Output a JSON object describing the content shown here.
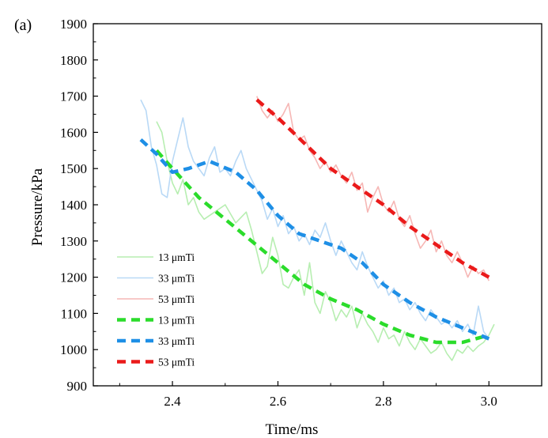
{
  "chart_data": {
    "type": "line",
    "panel_label": "(a)",
    "xlabel": "Time/ms",
    "ylabel": "Pressure/kPa",
    "xlim": [
      2.25,
      3.1
    ],
    "ylim": [
      900,
      1900
    ],
    "x_ticks": [
      2.4,
      2.6,
      2.8,
      3.0
    ],
    "x_tick_labels": [
      "2.4",
      "2.6",
      "2.8",
      "3.0"
    ],
    "y_ticks": [
      900,
      1000,
      1100,
      1200,
      1300,
      1400,
      1500,
      1600,
      1700,
      1800,
      1900
    ],
    "y_tick_labels": [
      "900",
      "1000",
      "1100",
      "1200",
      "1300",
      "1400",
      "1500",
      "1600",
      "1700",
      "1800",
      "1900"
    ],
    "grid": false,
    "legend_position": "bottom-left",
    "series": [
      {
        "name": "13 μmTi",
        "style": "thin",
        "color": "#b7eeb1",
        "points": [
          [
            2.37,
            1630
          ],
          [
            2.38,
            1600
          ],
          [
            2.39,
            1520
          ],
          [
            2.4,
            1460
          ],
          [
            2.41,
            1430
          ],
          [
            2.42,
            1470
          ],
          [
            2.43,
            1400
          ],
          [
            2.44,
            1420
          ],
          [
            2.45,
            1380
          ],
          [
            2.46,
            1360
          ],
          [
            2.48,
            1380
          ],
          [
            2.5,
            1400
          ],
          [
            2.52,
            1350
          ],
          [
            2.54,
            1380
          ],
          [
            2.55,
            1330
          ],
          [
            2.56,
            1270
          ],
          [
            2.57,
            1210
          ],
          [
            2.58,
            1230
          ],
          [
            2.59,
            1310
          ],
          [
            2.6,
            1260
          ],
          [
            2.61,
            1180
          ],
          [
            2.62,
            1170
          ],
          [
            2.63,
            1200
          ],
          [
            2.64,
            1220
          ],
          [
            2.65,
            1150
          ],
          [
            2.66,
            1240
          ],
          [
            2.67,
            1130
          ],
          [
            2.68,
            1100
          ],
          [
            2.69,
            1160
          ],
          [
            2.7,
            1130
          ],
          [
            2.71,
            1080
          ],
          [
            2.72,
            1110
          ],
          [
            2.73,
            1090
          ],
          [
            2.74,
            1120
          ],
          [
            2.75,
            1060
          ],
          [
            2.76,
            1100
          ],
          [
            2.77,
            1070
          ],
          [
            2.78,
            1050
          ],
          [
            2.79,
            1020
          ],
          [
            2.8,
            1060
          ],
          [
            2.81,
            1030
          ],
          [
            2.82,
            1040
          ],
          [
            2.83,
            1010
          ],
          [
            2.84,
            1050
          ],
          [
            2.85,
            1020
          ],
          [
            2.86,
            1000
          ],
          [
            2.87,
            1030
          ],
          [
            2.88,
            1010
          ],
          [
            2.89,
            990
          ],
          [
            2.9,
            1000
          ],
          [
            2.91,
            1020
          ],
          [
            2.92,
            990
          ],
          [
            2.93,
            970
          ],
          [
            2.94,
            1000
          ],
          [
            2.95,
            990
          ],
          [
            2.96,
            1010
          ],
          [
            2.97,
            995
          ],
          [
            2.98,
            1010
          ],
          [
            2.99,
            1020
          ],
          [
            3.0,
            1040
          ],
          [
            3.01,
            1070
          ]
        ]
      },
      {
        "name": "33 μmTi",
        "style": "thin",
        "color": "#b9d9f6",
        "points": [
          [
            2.34,
            1690
          ],
          [
            2.35,
            1660
          ],
          [
            2.36,
            1560
          ],
          [
            2.37,
            1510
          ],
          [
            2.38,
            1430
          ],
          [
            2.39,
            1420
          ],
          [
            2.4,
            1520
          ],
          [
            2.41,
            1580
          ],
          [
            2.42,
            1640
          ],
          [
            2.43,
            1560
          ],
          [
            2.44,
            1520
          ],
          [
            2.45,
            1500
          ],
          [
            2.46,
            1480
          ],
          [
            2.47,
            1530
          ],
          [
            2.48,
            1560
          ],
          [
            2.49,
            1490
          ],
          [
            2.5,
            1500
          ],
          [
            2.51,
            1480
          ],
          [
            2.52,
            1520
          ],
          [
            2.53,
            1550
          ],
          [
            2.54,
            1500
          ],
          [
            2.55,
            1470
          ],
          [
            2.56,
            1440
          ],
          [
            2.57,
            1410
          ],
          [
            2.58,
            1360
          ],
          [
            2.59,
            1390
          ],
          [
            2.6,
            1340
          ],
          [
            2.61,
            1370
          ],
          [
            2.62,
            1320
          ],
          [
            2.63,
            1340
          ],
          [
            2.64,
            1300
          ],
          [
            2.65,
            1320
          ],
          [
            2.66,
            1290
          ],
          [
            2.67,
            1330
          ],
          [
            2.68,
            1310
          ],
          [
            2.69,
            1350
          ],
          [
            2.7,
            1300
          ],
          [
            2.71,
            1260
          ],
          [
            2.72,
            1300
          ],
          [
            2.73,
            1270
          ],
          [
            2.74,
            1240
          ],
          [
            2.75,
            1220
          ],
          [
            2.76,
            1270
          ],
          [
            2.77,
            1230
          ],
          [
            2.78,
            1200
          ],
          [
            2.79,
            1170
          ],
          [
            2.8,
            1190
          ],
          [
            2.81,
            1150
          ],
          [
            2.82,
            1170
          ],
          [
            2.83,
            1130
          ],
          [
            2.84,
            1140
          ],
          [
            2.85,
            1110
          ],
          [
            2.86,
            1130
          ],
          [
            2.87,
            1100
          ],
          [
            2.88,
            1080
          ],
          [
            2.89,
            1110
          ],
          [
            2.9,
            1090
          ],
          [
            2.91,
            1070
          ],
          [
            2.92,
            1080
          ],
          [
            2.93,
            1060
          ],
          [
            2.94,
            1080
          ],
          [
            2.95,
            1050
          ],
          [
            2.96,
            1070
          ],
          [
            2.97,
            1040
          ],
          [
            2.98,
            1120
          ],
          [
            2.99,
            1050
          ],
          [
            3.0,
            1030
          ]
        ]
      },
      {
        "name": "53 μmTi",
        "style": "thin",
        "color": "#f6b7b5",
        "points": [
          [
            2.56,
            1700
          ],
          [
            2.57,
            1660
          ],
          [
            2.58,
            1640
          ],
          [
            2.59,
            1660
          ],
          [
            2.6,
            1630
          ],
          [
            2.61,
            1650
          ],
          [
            2.62,
            1680
          ],
          [
            2.63,
            1600
          ],
          [
            2.64,
            1580
          ],
          [
            2.65,
            1590
          ],
          [
            2.66,
            1550
          ],
          [
            2.67,
            1530
          ],
          [
            2.68,
            1500
          ],
          [
            2.69,
            1520
          ],
          [
            2.7,
            1490
          ],
          [
            2.71,
            1510
          ],
          [
            2.72,
            1480
          ],
          [
            2.73,
            1460
          ],
          [
            2.74,
            1490
          ],
          [
            2.75,
            1440
          ],
          [
            2.76,
            1460
          ],
          [
            2.77,
            1380
          ],
          [
            2.78,
            1420
          ],
          [
            2.79,
            1450
          ],
          [
            2.8,
            1400
          ],
          [
            2.81,
            1380
          ],
          [
            2.82,
            1410
          ],
          [
            2.83,
            1360
          ],
          [
            2.84,
            1340
          ],
          [
            2.85,
            1370
          ],
          [
            2.86,
            1320
          ],
          [
            2.87,
            1280
          ],
          [
            2.88,
            1300
          ],
          [
            2.89,
            1330
          ],
          [
            2.9,
            1270
          ],
          [
            2.91,
            1300
          ],
          [
            2.92,
            1260
          ],
          [
            2.93,
            1240
          ],
          [
            2.94,
            1270
          ],
          [
            2.95,
            1240
          ],
          [
            2.96,
            1200
          ],
          [
            2.97,
            1230
          ],
          [
            2.98,
            1210
          ],
          [
            2.99,
            1220
          ],
          [
            3.0,
            1190
          ]
        ]
      },
      {
        "name": "13 μmTi",
        "style": "dashed",
        "color": "#2bdc2b",
        "points": [
          [
            2.37,
            1550
          ],
          [
            2.4,
            1500
          ],
          [
            2.45,
            1420
          ],
          [
            2.5,
            1360
          ],
          [
            2.55,
            1300
          ],
          [
            2.6,
            1240
          ],
          [
            2.65,
            1180
          ],
          [
            2.7,
            1140
          ],
          [
            2.75,
            1110
          ],
          [
            2.8,
            1070
          ],
          [
            2.85,
            1040
          ],
          [
            2.9,
            1020
          ],
          [
            2.95,
            1020
          ],
          [
            3.0,
            1040
          ]
        ]
      },
      {
        "name": "33 μmTi",
        "style": "dashed",
        "color": "#1e8fe6",
        "points": [
          [
            2.34,
            1580
          ],
          [
            2.37,
            1540
          ],
          [
            2.4,
            1490
          ],
          [
            2.43,
            1500
          ],
          [
            2.47,
            1520
          ],
          [
            2.52,
            1490
          ],
          [
            2.56,
            1440
          ],
          [
            2.6,
            1370
          ],
          [
            2.64,
            1320
          ],
          [
            2.68,
            1300
          ],
          [
            2.72,
            1280
          ],
          [
            2.76,
            1240
          ],
          [
            2.8,
            1180
          ],
          [
            2.85,
            1130
          ],
          [
            2.9,
            1090
          ],
          [
            2.95,
            1060
          ],
          [
            3.0,
            1030
          ]
        ]
      },
      {
        "name": "53 μmTi",
        "style": "dashed",
        "color": "#ea1a1a",
        "points": [
          [
            2.56,
            1690
          ],
          [
            2.6,
            1640
          ],
          [
            2.65,
            1570
          ],
          [
            2.7,
            1500
          ],
          [
            2.75,
            1450
          ],
          [
            2.8,
            1400
          ],
          [
            2.85,
            1340
          ],
          [
            2.9,
            1290
          ],
          [
            2.95,
            1240
          ],
          [
            3.0,
            1200
          ]
        ]
      }
    ]
  }
}
